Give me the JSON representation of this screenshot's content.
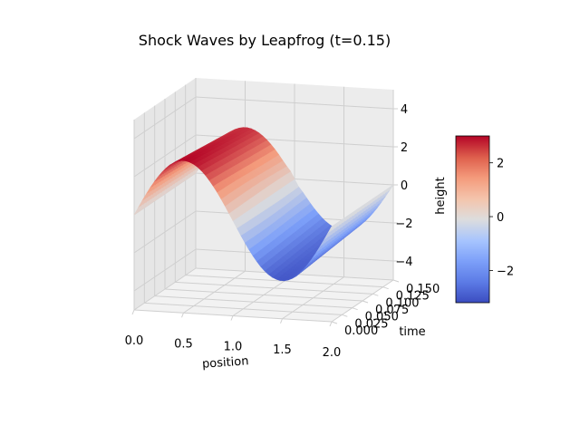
{
  "chart_data": {
    "type": "surface3d",
    "title": "Shock Waves by Leapfrog (t=0.15)",
    "xlabel": "position",
    "ylabel": "time",
    "zlabel": "height",
    "xlim": [
      0.0,
      2.0
    ],
    "ylim": [
      0.0,
      0.15
    ],
    "zlim": [
      -5,
      5
    ],
    "x_ticks": [
      "0.0",
      "0.5",
      "1.0",
      "1.5",
      "2.0"
    ],
    "y_ticks": [
      "0.000",
      "0.025",
      "0.050",
      "0.075",
      "0.100",
      "0.125",
      "0.150"
    ],
    "z_ticks": [
      "−4",
      "−2",
      "0",
      "2",
      "4"
    ],
    "colormap": "coolwarm",
    "colorbar": {
      "min": -3.2,
      "max": 3.0,
      "ticks": [
        "−2",
        "0",
        "2"
      ]
    },
    "surface_description": "Initial sine wave u=3 sin(pi x) steepening into a shock near x=1 over time",
    "amplitude": 3.0,
    "grid": true
  },
  "colors": {
    "cool": "#3b4cc0",
    "mid": "#dddddd",
    "warm": "#b40426"
  }
}
